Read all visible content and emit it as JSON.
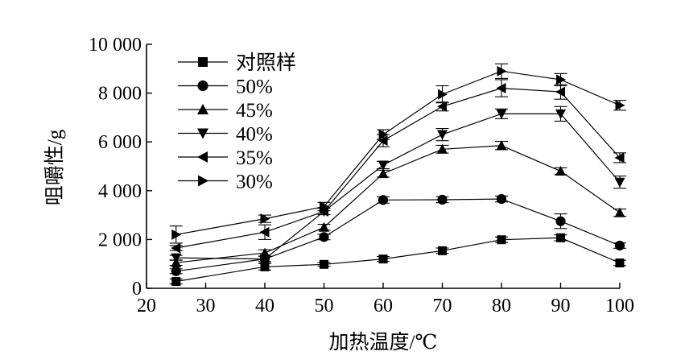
{
  "chart_data": {
    "type": "line",
    "title": "",
    "xlabel": "加热温度/℃",
    "ylabel": "咀嚼性/g",
    "xlim": [
      20,
      100
    ],
    "ylim": [
      0,
      10000
    ],
    "xticks": [
      20,
      30,
      40,
      50,
      60,
      70,
      80,
      90,
      100
    ],
    "xtick_labels": [
      "20",
      "30",
      "40",
      "50",
      "60",
      "70",
      "80",
      "90",
      "100"
    ],
    "yticks": [
      0,
      2000,
      4000,
      6000,
      8000,
      10000
    ],
    "ytick_labels": [
      "0",
      "2 000",
      "4 000",
      "6 000",
      "8 000",
      "10 000"
    ],
    "grid": false,
    "legend_position": "top-left",
    "x": [
      25,
      40,
      50,
      60,
      70,
      80,
      90,
      100
    ],
    "series": [
      {
        "name": "对照样",
        "marker": "square",
        "values": [
          280,
          880,
          980,
          1200,
          1540,
          1990,
          2070,
          1040
        ],
        "errors": [
          100,
          130,
          80,
          100,
          110,
          110,
          120,
          110
        ]
      },
      {
        "name": "50%",
        "marker": "circle",
        "values": [
          700,
          1200,
          2100,
          3620,
          3630,
          3660,
          2750,
          1750
        ],
        "errors": [
          100,
          120,
          110,
          130,
          120,
          120,
          300,
          110
        ]
      },
      {
        "name": "45%",
        "marker": "triangle-up",
        "values": [
          1050,
          1450,
          2500,
          4700,
          5700,
          5850,
          4800,
          3100
        ],
        "errors": [
          110,
          130,
          120,
          140,
          160,
          170,
          140,
          150
        ]
      },
      {
        "name": "40%",
        "marker": "triangle-down",
        "values": [
          1250,
          1200,
          3150,
          5050,
          6300,
          7150,
          7150,
          4350
        ],
        "errors": [
          100,
          110,
          130,
          150,
          250,
          200,
          300,
          250
        ]
      },
      {
        "name": "35%",
        "marker": "triangle-left",
        "values": [
          1650,
          2300,
          3150,
          6050,
          7450,
          8200,
          8050,
          5350
        ],
        "errors": [
          100,
          300,
          130,
          250,
          180,
          350,
          300,
          200
        ]
      },
      {
        "name": "30%",
        "marker": "triangle-right",
        "values": [
          2200,
          2850,
          3350,
          6300,
          7950,
          8900,
          8550,
          7500
        ],
        "errors": [
          350,
          150,
          170,
          200,
          350,
          300,
          250,
          200
        ]
      }
    ]
  }
}
